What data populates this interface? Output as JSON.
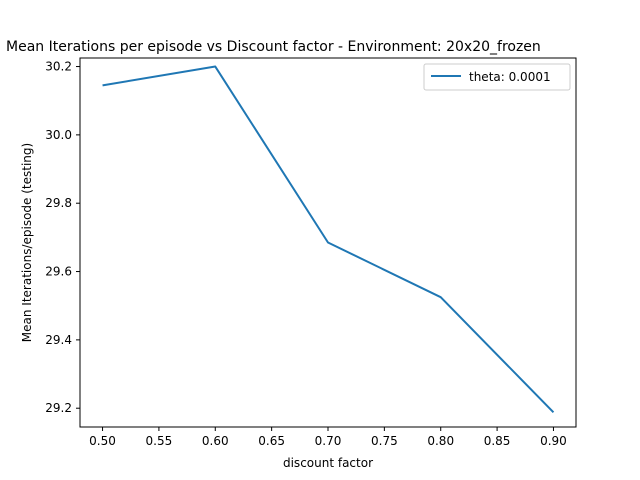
{
  "chart_data": {
    "type": "line",
    "title": "Mean Iterations per episode vs Discount factor - Environment: 20x20_frozen",
    "xlabel": "discount factor",
    "ylabel": "Mean Iterations/episode (testing)",
    "x": [
      0.5,
      0.6,
      0.7,
      0.8,
      0.9
    ],
    "series": [
      {
        "name": "theta: 0.0001",
        "values": [
          30.145,
          30.2,
          29.685,
          29.525,
          29.188
        ],
        "color": "#1f77b4"
      }
    ],
    "xlim": [
      0.48,
      0.92
    ],
    "ylim": [
      29.145,
      30.225
    ],
    "x_ticks": [
      "0.50",
      "0.55",
      "0.60",
      "0.65",
      "0.70",
      "0.75",
      "0.80",
      "0.85",
      "0.90"
    ],
    "y_ticks": [
      "29.2",
      "29.4",
      "29.6",
      "29.8",
      "30.0",
      "30.2"
    ],
    "grid": false,
    "legend_position": "top-right"
  }
}
